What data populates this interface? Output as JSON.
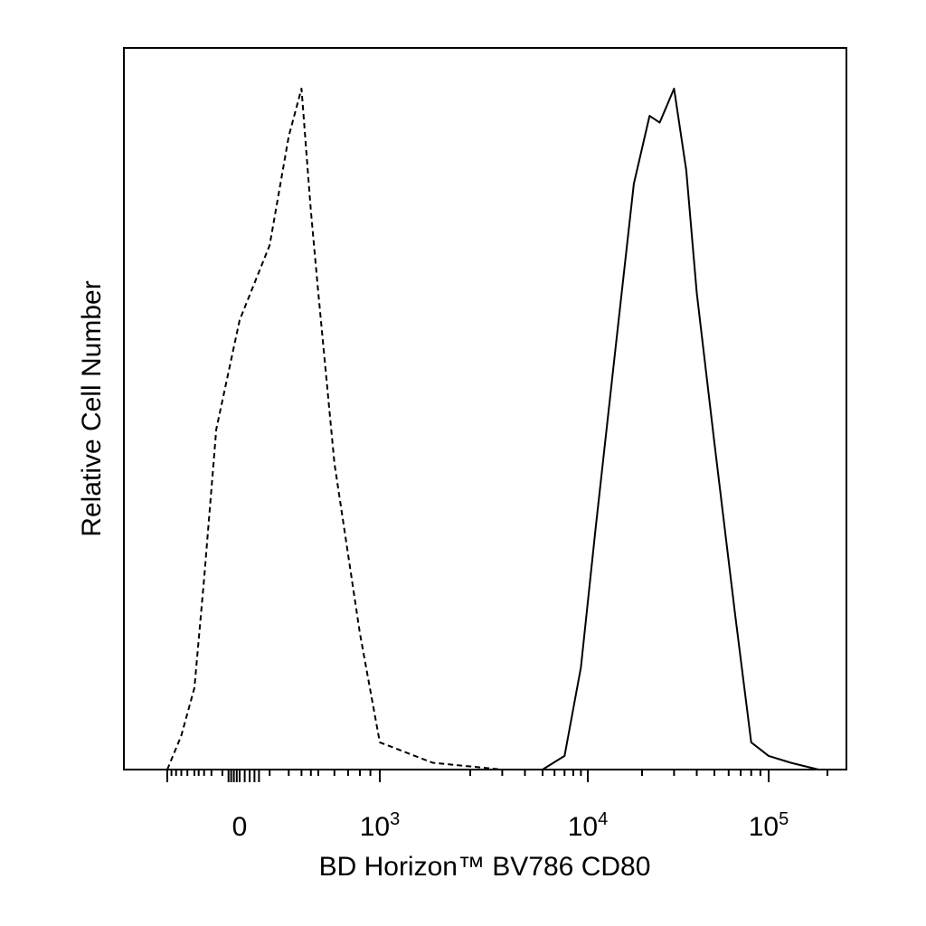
{
  "chart_data": {
    "type": "line",
    "xlabel": "BD Horizon™ BV786 CD80",
    "ylabel": "Relative Cell Number",
    "x_scale": "biexponential",
    "grid": false,
    "legend": "none",
    "x_tick_labels": [
      {
        "base": "0",
        "exp": "",
        "value": 0
      },
      {
        "base": "10",
        "exp": "3",
        "value": 1000
      },
      {
        "base": "10",
        "exp": "4",
        "value": 10000
      },
      {
        "base": "10",
        "exp": "5",
        "value": 100000
      }
    ],
    "series": [
      {
        "style": "dashed",
        "color": "#000000",
        "x": [
          -1000,
          -700,
          -500,
          -300,
          -150,
          0,
          100,
          200,
          300,
          400,
          500,
          600,
          800,
          1000,
          1500,
          3000,
          8000
        ],
        "y": [
          0.0,
          0.05,
          0.12,
          0.28,
          0.5,
          0.66,
          0.77,
          0.93,
          1.0,
          0.82,
          0.7,
          0.45,
          0.2,
          0.04,
          0.01,
          0.0,
          0.0
        ]
      },
      {
        "style": "solid",
        "color": "#000000",
        "x": [
          5000,
          7000,
          9000,
          11000,
          14000,
          18000,
          22000,
          25000,
          30000,
          35000,
          40000,
          50000,
          65000,
          80000,
          100000,
          130000,
          180000
        ],
        "y": [
          0.0,
          0.02,
          0.15,
          0.35,
          0.6,
          0.86,
          0.96,
          0.95,
          1.0,
          0.88,
          0.7,
          0.48,
          0.23,
          0.04,
          0.02,
          0.01,
          0.0
        ]
      }
    ]
  }
}
